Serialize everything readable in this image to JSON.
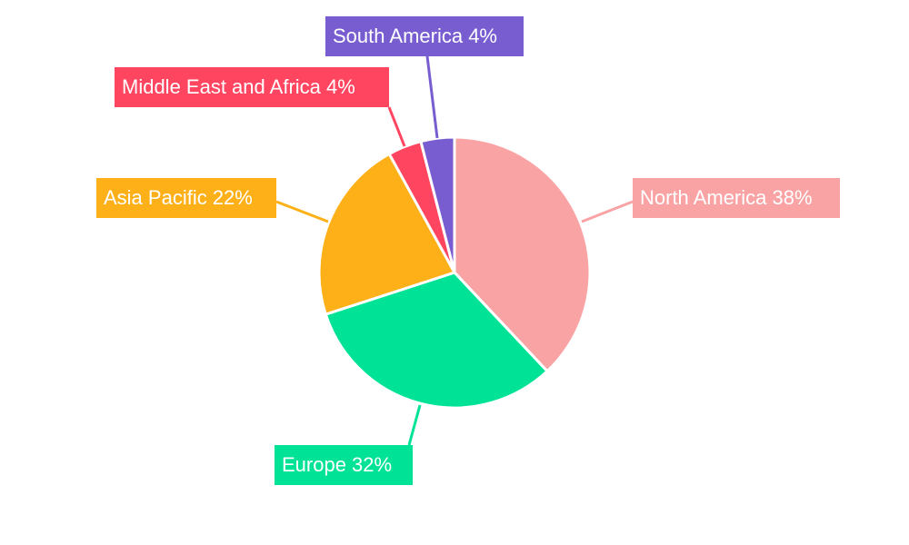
{
  "chart_data": {
    "type": "pie",
    "start_angle": "top, clockwise",
    "legend": "none",
    "slices": [
      {
        "name": "North America",
        "value": 38,
        "label": "North America 38%",
        "color": "#f9a3a4"
      },
      {
        "name": "Europe",
        "value": 32,
        "label": "Europe 32%",
        "color": "#00e396"
      },
      {
        "name": "Asia Pacific",
        "value": 22,
        "label": "Asia Pacific 22%",
        "color": "#feb019"
      },
      {
        "name": "Middle East and Africa",
        "value": 4,
        "label": "Middle East and Africa 4%",
        "color": "#ff4560"
      },
      {
        "name": "South America",
        "value": 4,
        "label": "South America 4%",
        "color": "#775dd0"
      }
    ]
  }
}
